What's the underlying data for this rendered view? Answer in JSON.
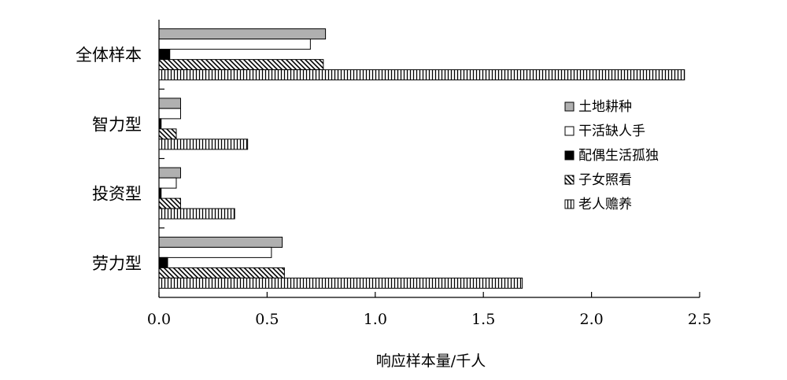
{
  "chart_data": {
    "type": "bar",
    "orientation": "horizontal",
    "categories": [
      "全体样本",
      "智力型",
      "投资型",
      "劳力型"
    ],
    "series": [
      {
        "name": "土地耕种",
        "values": [
          0.77,
          0.1,
          0.1,
          0.57
        ],
        "color": "#b0b0b0",
        "pattern": "solid-gray"
      },
      {
        "name": "干活缺人手",
        "values": [
          0.7,
          0.1,
          0.08,
          0.52
        ],
        "color": "#ffffff",
        "pattern": "white"
      },
      {
        "name": "配偶生活孤独",
        "values": [
          0.05,
          0.01,
          0.01,
          0.04
        ],
        "color": "#000000",
        "pattern": "solid-black"
      },
      {
        "name": "子女照看",
        "values": [
          0.76,
          0.08,
          0.1,
          0.58
        ],
        "color": "#ffffff",
        "pattern": "diagonal-hatch"
      },
      {
        "name": "老人赡养",
        "values": [
          2.43,
          0.41,
          0.35,
          1.68
        ],
        "color": "#ffffff",
        "pattern": "vertical-hatch"
      }
    ],
    "xlabel": "响应样本量/千人",
    "ylabel": "",
    "xlim": [
      0,
      2.5
    ],
    "xticks": [
      "0.0",
      "0.5",
      "1.0",
      "1.5",
      "2.0",
      "2.5"
    ],
    "grid": false,
    "legend_position": "right"
  }
}
